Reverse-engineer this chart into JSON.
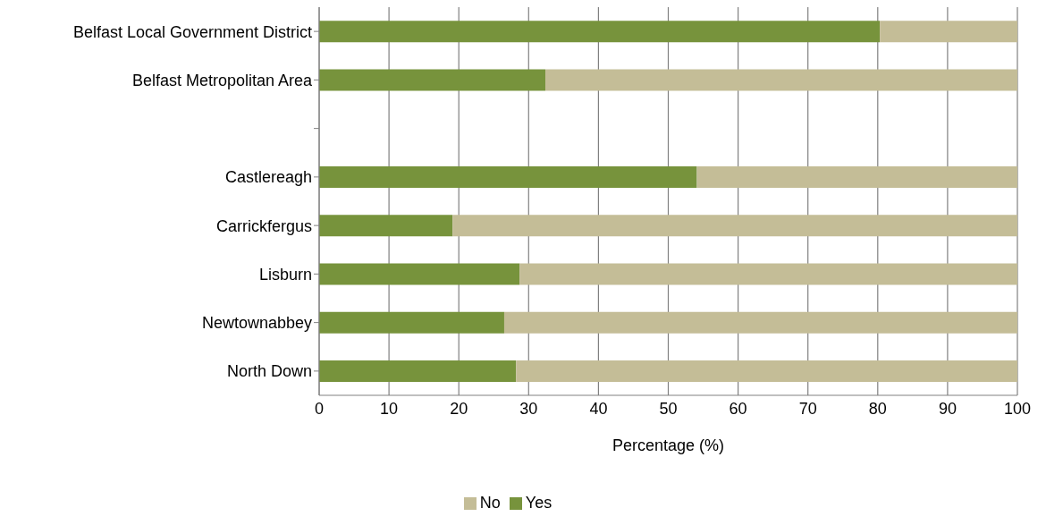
{
  "chart_data": {
    "type": "bar",
    "orientation": "horizontal",
    "stacked": true,
    "xlabel": "Percentage (%)",
    "categories": [
      "Belfast Local Government District",
      "Belfast Metropolitan Area",
      null,
      "Castlereagh",
      "Carrickfergus",
      "Lisburn",
      "Newtownabbey",
      "North Down"
    ],
    "series": [
      {
        "name": "Yes",
        "color": "#77933c",
        "values": [
          80.3,
          32.4,
          null,
          54.1,
          19.1,
          28.7,
          26.5,
          28.2
        ]
      },
      {
        "name": "No",
        "color": "#c4bd97",
        "values": [
          19.7,
          67.6,
          null,
          45.9,
          80.9,
          71.3,
          73.5,
          71.8
        ]
      }
    ],
    "xlim": [
      0,
      100
    ],
    "xticks": [
      0,
      10,
      20,
      30,
      40,
      50,
      60,
      70,
      80,
      90,
      100
    ],
    "grid": "x",
    "legend": "bottom"
  }
}
